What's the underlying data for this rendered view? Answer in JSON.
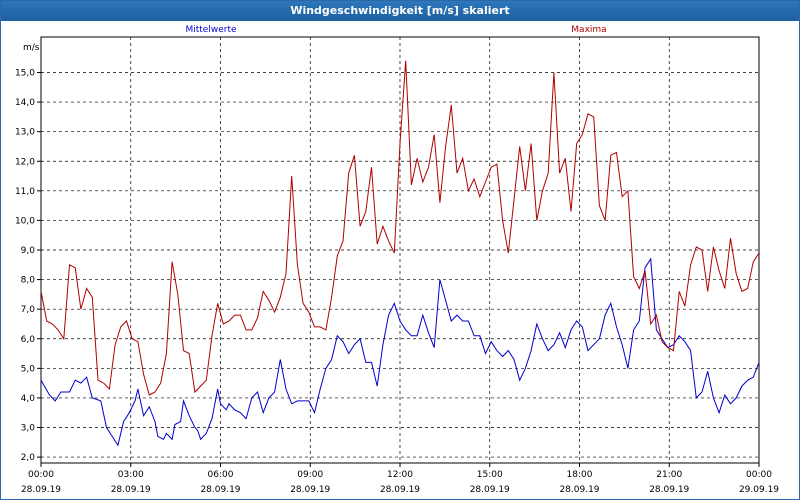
{
  "window": {
    "title": "Windgeschwindigkeit [m/s] skaliert"
  },
  "chart_data": {
    "type": "line",
    "title": "Windgeschwindigkeit [m/s] skaliert",
    "ylabel": "m/s",
    "ylim": [
      1.8,
      16.2
    ],
    "yticks": [
      "2,0",
      "3,0",
      "4,0",
      "5,0",
      "6,0",
      "7,0",
      "8,0",
      "9,0",
      "10,0",
      "11,0",
      "12,0",
      "13,0",
      "14,0",
      "15,0"
    ],
    "xlim": [
      0,
      24
    ],
    "xticks": [
      {
        "time": "00:00",
        "date": "28.09.19"
      },
      {
        "time": "03:00",
        "date": "28.09.19"
      },
      {
        "time": "06:00",
        "date": "28.09.19"
      },
      {
        "time": "09:00",
        "date": "28.09.19"
      },
      {
        "time": "12:00",
        "date": "28.09.19"
      },
      {
        "time": "15:00",
        "date": "28.09.19"
      },
      {
        "time": "18:00",
        "date": "28.09.19"
      },
      {
        "time": "21:00",
        "date": "28.09.19"
      },
      {
        "time": "00:00",
        "date": "29.09.19"
      }
    ],
    "grid": true,
    "series": [
      {
        "name": "Mittelwerte",
        "color": "#0000cc",
        "points": [
          [
            0.0,
            4.6
          ],
          [
            0.3,
            4.1
          ],
          [
            0.5,
            3.9
          ],
          [
            0.7,
            4.2
          ],
          [
            1.0,
            4.2
          ],
          [
            1.2,
            4.6
          ],
          [
            1.4,
            4.5
          ],
          [
            1.6,
            4.7
          ],
          [
            1.8,
            4.0
          ],
          [
            2.1,
            3.9
          ],
          [
            2.3,
            3.0
          ],
          [
            2.5,
            2.7
          ],
          [
            2.7,
            2.4
          ],
          [
            2.9,
            3.2
          ],
          [
            3.1,
            3.5
          ],
          [
            3.3,
            3.9
          ],
          [
            3.4,
            4.3
          ],
          [
            3.6,
            3.4
          ],
          [
            3.8,
            3.7
          ],
          [
            4.0,
            3.2
          ],
          [
            4.1,
            2.7
          ],
          [
            4.3,
            2.6
          ],
          [
            4.4,
            2.8
          ],
          [
            4.6,
            2.6
          ],
          [
            4.7,
            3.1
          ],
          [
            4.9,
            3.2
          ],
          [
            5.0,
            3.9
          ],
          [
            5.2,
            3.4
          ],
          [
            5.4,
            3.0
          ],
          [
            5.5,
            2.9
          ],
          [
            5.6,
            2.6
          ],
          [
            5.8,
            2.8
          ],
          [
            6.0,
            3.3
          ],
          [
            6.2,
            4.3
          ],
          [
            6.3,
            3.8
          ],
          [
            6.5,
            3.6
          ],
          [
            6.6,
            3.8
          ],
          [
            6.8,
            3.6
          ],
          [
            7.0,
            3.5
          ],
          [
            7.2,
            3.3
          ],
          [
            7.4,
            4.0
          ],
          [
            7.6,
            4.2
          ],
          [
            7.8,
            3.5
          ],
          [
            8.0,
            4.0
          ],
          [
            8.2,
            4.2
          ],
          [
            8.4,
            5.3
          ],
          [
            8.6,
            4.3
          ],
          [
            8.8,
            3.8
          ],
          [
            9.0,
            3.9
          ],
          [
            9.2,
            3.9
          ],
          [
            9.4,
            3.9
          ],
          [
            9.6,
            3.5
          ],
          [
            9.8,
            4.3
          ],
          [
            10.0,
            5.0
          ],
          [
            10.2,
            5.3
          ],
          [
            10.4,
            6.1
          ],
          [
            10.6,
            5.9
          ],
          [
            10.8,
            5.5
          ],
          [
            11.0,
            5.8
          ],
          [
            11.2,
            6.0
          ],
          [
            11.4,
            5.2
          ],
          [
            11.6,
            5.2
          ],
          [
            11.8,
            4.4
          ],
          [
            12.0,
            5.8
          ],
          [
            12.2,
            6.8
          ],
          [
            12.4,
            7.2
          ],
          [
            12.6,
            6.6
          ],
          [
            12.8,
            6.3
          ],
          [
            13.0,
            6.1
          ],
          [
            13.2,
            6.1
          ],
          [
            13.4,
            6.8
          ],
          [
            13.6,
            6.2
          ],
          [
            13.8,
            5.7
          ],
          [
            14.0,
            8.0
          ],
          [
            14.2,
            7.3
          ],
          [
            14.4,
            6.6
          ],
          [
            14.6,
            6.8
          ],
          [
            14.8,
            6.6
          ],
          [
            15.0,
            6.6
          ],
          [
            15.2,
            6.1
          ],
          [
            15.4,
            6.1
          ],
          [
            15.6,
            5.5
          ],
          [
            15.8,
            5.9
          ],
          [
            16.0,
            5.6
          ],
          [
            16.2,
            5.4
          ],
          [
            16.4,
            5.6
          ],
          [
            16.6,
            5.3
          ],
          [
            16.8,
            4.6
          ],
          [
            17.0,
            5.0
          ],
          [
            17.2,
            5.6
          ],
          [
            17.4,
            6.5
          ],
          [
            17.6,
            6.0
          ],
          [
            17.8,
            5.6
          ],
          [
            18.0,
            5.8
          ],
          [
            18.2,
            6.2
          ],
          [
            18.4,
            5.7
          ],
          [
            18.6,
            6.3
          ],
          [
            18.8,
            6.6
          ],
          [
            19.0,
            6.4
          ],
          [
            19.2,
            5.6
          ],
          [
            19.4,
            5.8
          ],
          [
            19.6,
            6.0
          ],
          [
            19.8,
            6.8
          ],
          [
            20.0,
            7.2
          ],
          [
            20.2,
            6.4
          ],
          [
            20.4,
            5.8
          ],
          [
            20.6,
            5.0
          ],
          [
            20.8,
            6.3
          ],
          [
            21.0,
            6.6
          ],
          [
            21.2,
            8.4
          ],
          [
            21.4,
            8.7
          ],
          [
            21.6,
            6.3
          ],
          [
            21.8,
            6.0
          ],
          [
            22.0,
            5.7
          ],
          [
            22.2,
            5.8
          ],
          [
            22.4,
            6.1
          ],
          [
            22.6,
            5.9
          ],
          [
            22.8,
            5.6
          ],
          [
            23.0,
            4.0
          ],
          [
            23.2,
            4.2
          ],
          [
            23.4,
            4.9
          ],
          [
            23.6,
            4.0
          ],
          [
            23.8,
            3.5
          ],
          [
            24.0,
            4.1
          ],
          [
            24.2,
            3.8
          ],
          [
            24.4,
            4.0
          ],
          [
            24.6,
            4.4
          ],
          [
            24.8,
            4.6
          ],
          [
            25.0,
            4.7
          ],
          [
            25.2,
            5.2
          ]
        ]
      },
      {
        "name": "Maxima",
        "color": "#b00000",
        "points": [
          [
            0.0,
            7.6
          ],
          [
            0.2,
            6.6
          ],
          [
            0.4,
            6.5
          ],
          [
            0.6,
            6.3
          ],
          [
            0.8,
            6.0
          ],
          [
            1.0,
            8.5
          ],
          [
            1.2,
            8.4
          ],
          [
            1.4,
            7.0
          ],
          [
            1.6,
            7.7
          ],
          [
            1.8,
            7.4
          ],
          [
            2.0,
            4.6
          ],
          [
            2.2,
            4.5
          ],
          [
            2.4,
            4.3
          ],
          [
            2.6,
            5.8
          ],
          [
            2.8,
            6.4
          ],
          [
            3.0,
            6.6
          ],
          [
            3.2,
            6.0
          ],
          [
            3.4,
            5.9
          ],
          [
            3.6,
            4.8
          ],
          [
            3.8,
            4.1
          ],
          [
            4.0,
            4.2
          ],
          [
            4.2,
            4.5
          ],
          [
            4.4,
            5.5
          ],
          [
            4.6,
            8.6
          ],
          [
            4.8,
            7.5
          ],
          [
            5.0,
            5.6
          ],
          [
            5.2,
            5.5
          ],
          [
            5.4,
            4.2
          ],
          [
            5.6,
            4.4
          ],
          [
            5.8,
            4.6
          ],
          [
            6.0,
            6.1
          ],
          [
            6.2,
            7.2
          ],
          [
            6.4,
            6.5
          ],
          [
            6.6,
            6.6
          ],
          [
            6.8,
            6.8
          ],
          [
            7.0,
            6.8
          ],
          [
            7.2,
            6.3
          ],
          [
            7.4,
            6.3
          ],
          [
            7.6,
            6.7
          ],
          [
            7.8,
            7.6
          ],
          [
            8.0,
            7.3
          ],
          [
            8.2,
            6.9
          ],
          [
            8.4,
            7.4
          ],
          [
            8.6,
            8.2
          ],
          [
            8.8,
            11.5
          ],
          [
            9.0,
            8.5
          ],
          [
            9.2,
            7.2
          ],
          [
            9.4,
            6.9
          ],
          [
            9.6,
            6.4
          ],
          [
            9.8,
            6.4
          ],
          [
            10.0,
            6.3
          ],
          [
            10.2,
            7.4
          ],
          [
            10.4,
            8.8
          ],
          [
            10.6,
            9.3
          ],
          [
            10.8,
            11.6
          ],
          [
            11.0,
            12.2
          ],
          [
            11.2,
            9.8
          ],
          [
            11.4,
            10.3
          ],
          [
            11.6,
            11.8
          ],
          [
            11.8,
            9.2
          ],
          [
            12.0,
            9.8
          ],
          [
            12.2,
            9.3
          ],
          [
            12.4,
            8.9
          ],
          [
            12.6,
            12.6
          ],
          [
            12.8,
            15.4
          ],
          [
            13.0,
            11.2
          ],
          [
            13.2,
            12.1
          ],
          [
            13.4,
            11.3
          ],
          [
            13.6,
            11.8
          ],
          [
            13.8,
            12.9
          ],
          [
            14.0,
            10.6
          ],
          [
            14.2,
            12.5
          ],
          [
            14.4,
            13.9
          ],
          [
            14.6,
            11.6
          ],
          [
            14.8,
            12.1
          ],
          [
            15.0,
            11.0
          ],
          [
            15.2,
            11.4
          ],
          [
            15.4,
            10.8
          ],
          [
            15.6,
            11.3
          ],
          [
            15.8,
            11.8
          ],
          [
            16.0,
            11.9
          ],
          [
            16.2,
            10.0
          ],
          [
            16.4,
            8.9
          ],
          [
            16.6,
            10.7
          ],
          [
            16.8,
            12.5
          ],
          [
            17.0,
            11.0
          ],
          [
            17.2,
            12.6
          ],
          [
            17.4,
            10.0
          ],
          [
            17.6,
            11.0
          ],
          [
            17.8,
            11.6
          ],
          [
            18.0,
            15.0
          ],
          [
            18.2,
            11.6
          ],
          [
            18.4,
            12.1
          ],
          [
            18.6,
            10.3
          ],
          [
            18.8,
            12.6
          ],
          [
            19.0,
            12.9
          ],
          [
            19.2,
            13.6
          ],
          [
            19.4,
            13.5
          ],
          [
            19.6,
            10.5
          ],
          [
            19.8,
            10.0
          ],
          [
            20.0,
            12.2
          ],
          [
            20.2,
            12.3
          ],
          [
            20.4,
            10.8
          ],
          [
            20.6,
            11.0
          ],
          [
            20.8,
            8.1
          ],
          [
            21.0,
            7.7
          ],
          [
            21.2,
            8.3
          ],
          [
            21.4,
            6.5
          ],
          [
            21.6,
            6.8
          ],
          [
            21.8,
            5.9
          ],
          [
            22.0,
            5.7
          ],
          [
            22.2,
            5.6
          ],
          [
            22.4,
            7.6
          ],
          [
            22.6,
            7.1
          ],
          [
            22.8,
            8.5
          ],
          [
            23.0,
            9.1
          ],
          [
            23.2,
            9.0
          ],
          [
            23.4,
            7.6
          ],
          [
            23.6,
            9.1
          ],
          [
            23.8,
            8.3
          ],
          [
            24.0,
            7.7
          ],
          [
            24.2,
            9.4
          ],
          [
            24.4,
            8.2
          ],
          [
            24.6,
            7.6
          ],
          [
            24.8,
            7.7
          ],
          [
            25.0,
            8.6
          ],
          [
            25.2,
            8.9
          ]
        ]
      }
    ],
    "legend": [
      {
        "label": "Mittelwerte",
        "color": "#0000cc",
        "position": "top-left"
      },
      {
        "label": "Maxima",
        "color": "#b00000",
        "position": "top-right"
      }
    ]
  }
}
